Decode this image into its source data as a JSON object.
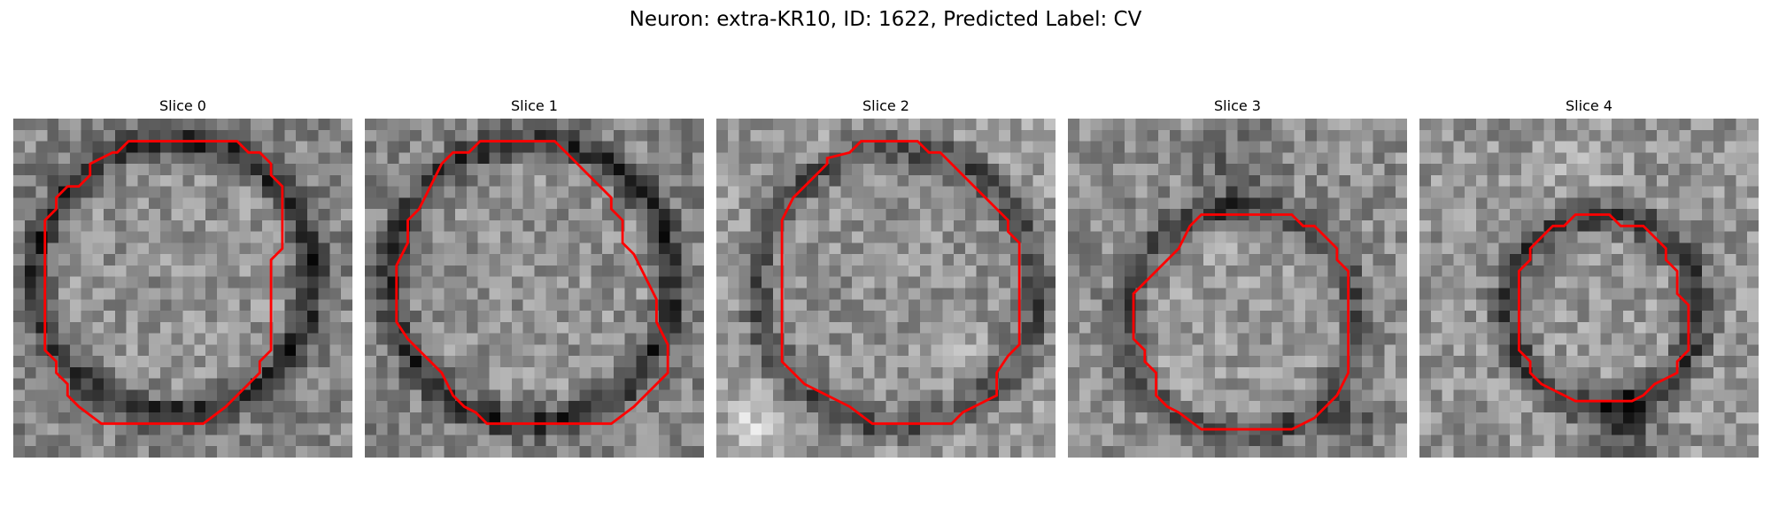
{
  "figure": {
    "title": "Neuron: extra-KR10, ID: 1622, Predicted Label: CV",
    "outline_color": "#ff0000",
    "colormap": "gray",
    "panels": [
      {
        "title": "Slice 0",
        "seed": 11,
        "base": 0.52,
        "ring": 0.35,
        "inner": 0.05,
        "blobs": [],
        "outline": [
          [
            102,
            20
          ],
          [
            198,
            20
          ],
          [
            208,
            30
          ],
          [
            218,
            30
          ],
          [
            228,
            40
          ],
          [
            228,
            50
          ],
          [
            238,
            60
          ],
          [
            238,
            115
          ],
          [
            228,
            125
          ],
          [
            228,
            205
          ],
          [
            218,
            215
          ],
          [
            218,
            225
          ],
          [
            198,
            245
          ],
          [
            188,
            255
          ],
          [
            168,
            270
          ],
          [
            78,
            270
          ],
          [
            58,
            255
          ],
          [
            48,
            245
          ],
          [
            48,
            235
          ],
          [
            38,
            225
          ],
          [
            38,
            215
          ],
          [
            28,
            205
          ],
          [
            28,
            90
          ],
          [
            38,
            80
          ],
          [
            38,
            70
          ],
          [
            48,
            60
          ],
          [
            58,
            60
          ],
          [
            68,
            50
          ],
          [
            68,
            40
          ],
          [
            88,
            30
          ],
          [
            92,
            30
          ]
        ],
        "cx": 142,
        "cy": 140,
        "r": 115
      },
      {
        "title": "Slice 1",
        "seed": 23,
        "base": 0.52,
        "ring": 0.33,
        "inner": 0.05,
        "blobs": [],
        "outline": [
          [
            102,
            20
          ],
          [
            168,
            20
          ],
          [
            178,
            30
          ],
          [
            188,
            40
          ],
          [
            198,
            50
          ],
          [
            218,
            70
          ],
          [
            218,
            80
          ],
          [
            228,
            90
          ],
          [
            228,
            110
          ],
          [
            238,
            120
          ],
          [
            248,
            140
          ],
          [
            258,
            160
          ],
          [
            258,
            180
          ],
          [
            268,
            200
          ],
          [
            268,
            225
          ],
          [
            258,
            235
          ],
          [
            248,
            245
          ],
          [
            238,
            255
          ],
          [
            218,
            270
          ],
          [
            108,
            270
          ],
          [
            98,
            260
          ],
          [
            88,
            255
          ],
          [
            78,
            245
          ],
          [
            68,
            225
          ],
          [
            58,
            215
          ],
          [
            48,
            205
          ],
          [
            38,
            195
          ],
          [
            28,
            180
          ],
          [
            28,
            130
          ],
          [
            38,
            110
          ],
          [
            38,
            90
          ],
          [
            48,
            80
          ],
          [
            58,
            60
          ],
          [
            68,
            40
          ],
          [
            78,
            30
          ],
          [
            92,
            30
          ]
        ],
        "cx": 148,
        "cy": 145,
        "r": 118
      },
      {
        "title": "Slice 2",
        "seed": 37,
        "base": 0.6,
        "ring": 0.3,
        "inner": -0.03,
        "blobs": [
          {
            "x": 35,
            "y": 270,
            "r": 45,
            "v": 0.25
          },
          {
            "x": 210,
            "y": 190,
            "r": 35,
            "v": 0.15
          }
        ],
        "outline": [
          [
            128,
            20
          ],
          [
            178,
            20
          ],
          [
            188,
            30
          ],
          [
            198,
            30
          ],
          [
            218,
            50
          ],
          [
            238,
            70
          ],
          [
            248,
            80
          ],
          [
            258,
            90
          ],
          [
            258,
            100
          ],
          [
            268,
            110
          ],
          [
            268,
            200
          ],
          [
            258,
            210
          ],
          [
            248,
            225
          ],
          [
            248,
            245
          ],
          [
            228,
            255
          ],
          [
            218,
            260
          ],
          [
            208,
            270
          ],
          [
            138,
            270
          ],
          [
            118,
            255
          ],
          [
            108,
            250
          ],
          [
            98,
            245
          ],
          [
            78,
            235
          ],
          [
            68,
            225
          ],
          [
            58,
            215
          ],
          [
            58,
            90
          ],
          [
            68,
            70
          ],
          [
            78,
            60
          ],
          [
            88,
            50
          ],
          [
            98,
            40
          ],
          [
            98,
            35
          ],
          [
            118,
            30
          ]
        ],
        "cx": 160,
        "cy": 150,
        "r": 118
      },
      {
        "title": "Slice 3",
        "seed": 51,
        "base": 0.55,
        "ring": 0.28,
        "inner": 0.05,
        "blobs": [
          {
            "x": 150,
            "y": 40,
            "r": 55,
            "v": -0.18
          },
          {
            "x": 250,
            "y": 270,
            "r": 40,
            "v": -0.2
          }
        ],
        "outline": [
          [
            138,
            85
          ],
          [
            198,
            85
          ],
          [
            208,
            95
          ],
          [
            218,
            95
          ],
          [
            228,
            105
          ],
          [
            238,
            115
          ],
          [
            238,
            125
          ],
          [
            248,
            135
          ],
          [
            248,
            225
          ],
          [
            238,
            245
          ],
          [
            228,
            255
          ],
          [
            218,
            265
          ],
          [
            208,
            270
          ],
          [
            198,
            275
          ],
          [
            118,
            275
          ],
          [
            98,
            260
          ],
          [
            88,
            255
          ],
          [
            78,
            245
          ],
          [
            78,
            225
          ],
          [
            68,
            215
          ],
          [
            68,
            205
          ],
          [
            58,
            195
          ],
          [
            58,
            155
          ],
          [
            68,
            145
          ],
          [
            78,
            135
          ],
          [
            88,
            125
          ],
          [
            98,
            115
          ],
          [
            108,
            95
          ],
          [
            118,
            85
          ]
        ],
        "cx": 152,
        "cy": 180,
        "r": 95
      },
      {
        "title": "Slice 4",
        "seed": 67,
        "base": 0.58,
        "ring": 0.35,
        "inner": 0.02,
        "blobs": [
          {
            "x": 140,
            "y": 40,
            "r": 45,
            "v": 0.1
          },
          {
            "x": 180,
            "y": 270,
            "r": 50,
            "v": -0.3
          }
        ],
        "outline": [
          [
            138,
            85
          ],
          [
            168,
            85
          ],
          [
            178,
            95
          ],
          [
            198,
            95
          ],
          [
            208,
            105
          ],
          [
            218,
            115
          ],
          [
            218,
            125
          ],
          [
            228,
            135
          ],
          [
            228,
            155
          ],
          [
            238,
            165
          ],
          [
            238,
            205
          ],
          [
            228,
            215
          ],
          [
            228,
            225
          ],
          [
            208,
            235
          ],
          [
            198,
            245
          ],
          [
            188,
            250
          ],
          [
            138,
            250
          ],
          [
            128,
            245
          ],
          [
            108,
            235
          ],
          [
            98,
            225
          ],
          [
            98,
            215
          ],
          [
            88,
            205
          ],
          [
            88,
            135
          ],
          [
            98,
            125
          ],
          [
            98,
            115
          ],
          [
            108,
            105
          ],
          [
            118,
            95
          ],
          [
            128,
            95
          ]
        ],
        "cx": 163,
        "cy": 170,
        "r": 78
      }
    ]
  }
}
